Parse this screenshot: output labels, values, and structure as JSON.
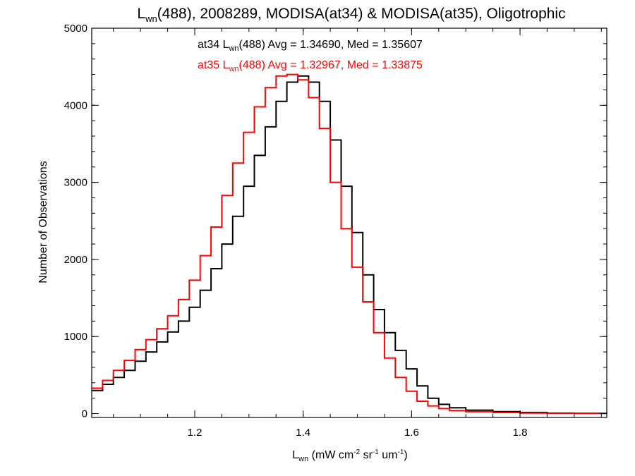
{
  "chart_data": {
    "type": "line",
    "step": true,
    "title_main": "L",
    "title_sub": "wn",
    "title_rest": "(488), 2008289, MODISA(at34) & MODISA(at35), Oligotrophic",
    "xlabel_main": "L",
    "xlabel_sub": "wn",
    "xlabel_rest_a": " (mW cm",
    "xlabel_sup1": "-2",
    "xlabel_rest_b": " sr",
    "xlabel_sup2": "-1",
    "xlabel_rest_c": " um",
    "xlabel_sup3": "-1",
    "xlabel_rest_d": ")",
    "ylabel": "Number of Observations",
    "xlim": [
      1.01,
      1.96
    ],
    "ylim": [
      -50,
      5000
    ],
    "xticks": [
      1.2,
      1.4,
      1.6,
      1.8
    ],
    "xtick_labels": [
      "1.2",
      "1.4",
      "1.6",
      "1.8"
    ],
    "yticks": [
      0,
      1000,
      2000,
      3000,
      4000,
      5000
    ],
    "ytick_labels": [
      "0",
      "1000",
      "2000",
      "3000",
      "4000",
      "5000"
    ],
    "grid": false,
    "annotations": [
      {
        "prefix": "at34 L",
        "sub": "wn",
        "suffix": "(488) Avg = 1.34690, Med = 1.35607",
        "color": "#000000"
      },
      {
        "prefix": "at35 L",
        "sub": "wn",
        "suffix": "(488) Avg = 1.32967, Med = 1.33875",
        "color": "#ff0000"
      }
    ],
    "series": [
      {
        "color": "#000000",
        "x": [
          1.01,
          1.03,
          1.05,
          1.07,
          1.09,
          1.11,
          1.13,
          1.15,
          1.17,
          1.19,
          1.21,
          1.23,
          1.25,
          1.27,
          1.29,
          1.31,
          1.33,
          1.35,
          1.37,
          1.39,
          1.41,
          1.43,
          1.45,
          1.47,
          1.49,
          1.51,
          1.53,
          1.55,
          1.57,
          1.59,
          1.61,
          1.63,
          1.65,
          1.67,
          1.7,
          1.75,
          1.8,
          1.85,
          1.9,
          1.96
        ],
        "y": [
          300,
          380,
          470,
          560,
          680,
          800,
          930,
          1060,
          1200,
          1380,
          1600,
          1880,
          2200,
          2560,
          2950,
          3350,
          3720,
          4050,
          4300,
          4380,
          4300,
          4050,
          3550,
          2950,
          2350,
          1800,
          1350,
          1050,
          820,
          580,
          360,
          200,
          120,
          75,
          45,
          25,
          15,
          8,
          5,
          3
        ]
      },
      {
        "color": "#ff0000",
        "x": [
          1.01,
          1.03,
          1.05,
          1.07,
          1.09,
          1.11,
          1.13,
          1.15,
          1.17,
          1.19,
          1.21,
          1.23,
          1.25,
          1.27,
          1.29,
          1.31,
          1.33,
          1.35,
          1.37,
          1.39,
          1.41,
          1.43,
          1.45,
          1.47,
          1.49,
          1.51,
          1.53,
          1.55,
          1.57,
          1.59,
          1.61,
          1.63,
          1.65,
          1.67,
          1.7,
          1.75,
          1.8,
          1.85,
          1.9,
          1.96
        ],
        "y": [
          330,
          430,
          560,
          690,
          830,
          960,
          1100,
          1270,
          1480,
          1730,
          2050,
          2420,
          2830,
          3250,
          3650,
          3980,
          4230,
          4380,
          4400,
          4330,
          4100,
          3700,
          3000,
          2400,
          1900,
          1450,
          1050,
          720,
          470,
          290,
          160,
          100,
          65,
          40,
          25,
          14,
          8,
          5,
          3,
          2
        ]
      }
    ]
  }
}
